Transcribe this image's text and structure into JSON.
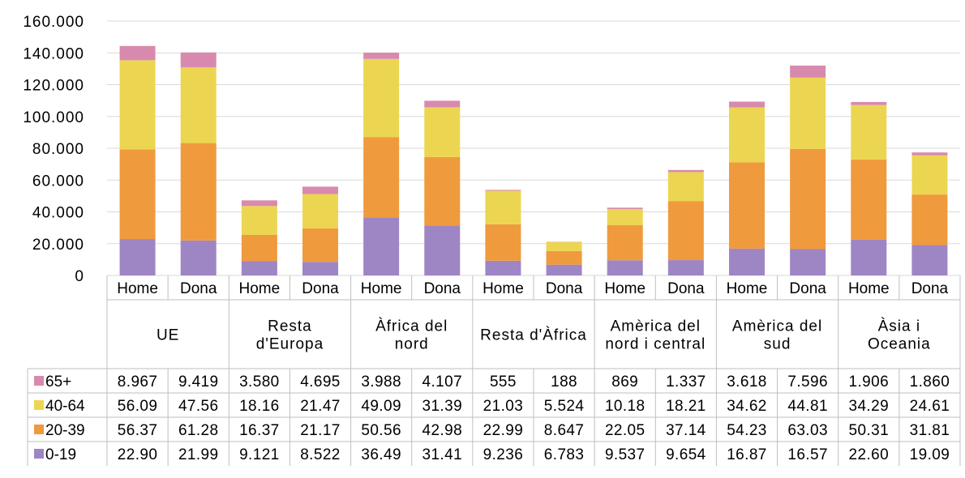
{
  "chart_data": {
    "type": "bar",
    "stacked": true,
    "title": "",
    "xlabel": "",
    "ylabel": "",
    "ylim": [
      0,
      160000
    ],
    "yticks": [
      "0",
      "20.000",
      "40.000",
      "60.000",
      "80.000",
      "100.000",
      "120.000",
      "140.000",
      "160.000"
    ],
    "grid": true,
    "legend_placement": "data-table-left",
    "groups": [
      {
        "label": "UE"
      },
      {
        "label": "Resta d'Europa"
      },
      {
        "label": "Àfrica del nord"
      },
      {
        "label": "Resta d'Àfrica"
      },
      {
        "label": "Amèrica del nord i central"
      },
      {
        "label": "Amèrica del sud"
      },
      {
        "label": "Àsia i Oceania"
      }
    ],
    "categories": [
      "Home",
      "Dona",
      "Home",
      "Dona",
      "Home",
      "Dona",
      "Home",
      "Dona",
      "Home",
      "Dona",
      "Home",
      "Dona",
      "Home",
      "Dona"
    ],
    "series": [
      {
        "name": "0-19",
        "color": "#9e86c4",
        "values": [
          22900,
          21990,
          9121,
          8522,
          36490,
          31410,
          9236,
          6783,
          9537,
          9654,
          16870,
          16570,
          22600,
          19090
        ],
        "labels": [
          "22.90",
          "21.99",
          "9.121",
          "8.522",
          "36.49",
          "31.41",
          "9.236",
          "6.783",
          "9.537",
          "9.654",
          "16.87",
          "16.57",
          "22.60",
          "19.09"
        ]
      },
      {
        "name": "20-39",
        "color": "#f09a3e",
        "values": [
          56370,
          61280,
          16370,
          21170,
          50560,
          42980,
          22990,
          8647,
          22050,
          37140,
          54230,
          63030,
          50310,
          31810
        ],
        "labels": [
          "56.37",
          "61.28",
          "16.37",
          "21.17",
          "50.56",
          "42.98",
          "22.99",
          "8.647",
          "22.05",
          "37.14",
          "54.23",
          "63.03",
          "50.31",
          "31.81"
        ]
      },
      {
        "name": "40-64",
        "color": "#ecd651",
        "values": [
          56090,
          47560,
          18160,
          21470,
          49090,
          31390,
          21030,
          5524,
          10180,
          18210,
          34620,
          44810,
          34290,
          24610
        ],
        "labels": [
          "56.09",
          "47.56",
          "18.16",
          "21.47",
          "49.09",
          "31.39",
          "21.03",
          "5.524",
          "10.18",
          "18.21",
          "34.62",
          "44.81",
          "34.29",
          "24.61"
        ]
      },
      {
        "name": "65+",
        "color": "#d88aae",
        "values": [
          8967,
          9419,
          3580,
          4695,
          3988,
          4107,
          555,
          188,
          869,
          1337,
          3618,
          7596,
          1906,
          1860
        ],
        "labels": [
          "8.967",
          "9.419",
          "3.580",
          "4.695",
          "3.988",
          "4.107",
          "555",
          "188",
          "869",
          "1.337",
          "3.618",
          "7.596",
          "1.906",
          "1.860"
        ]
      }
    ]
  }
}
